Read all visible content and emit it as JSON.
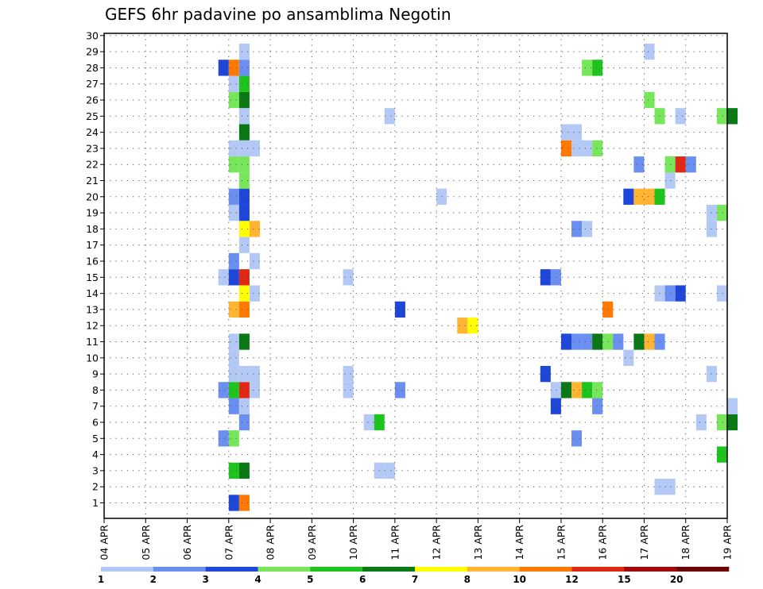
{
  "chart_data": {
    "type": "heatmap",
    "title": "GEFS 6hr padavine po ansamblima Negotin",
    "y_categories": [
      "1",
      "2",
      "3",
      "4",
      "5",
      "6",
      "7",
      "8",
      "9",
      "10",
      "11",
      "12",
      "13",
      "14",
      "15",
      "16",
      "17",
      "18",
      "19",
      "20",
      "21",
      "22",
      "23",
      "24",
      "25",
      "26",
      "27",
      "28",
      "29",
      "30"
    ],
    "x_tick_labels": [
      "04 APR",
      "05 APR",
      "06 APR",
      "07 APR",
      "08 APR",
      "09 APR",
      "10 APR",
      "11 APR",
      "12 APR",
      "13 APR",
      "14 APR",
      "15 APR",
      "16 APR",
      "17 APR",
      "18 APR",
      "19 APR"
    ],
    "x_step_hours": 6,
    "grid": "dotted",
    "legend": {
      "position": "bottom",
      "bins": [
        {
          "color": "#b4c8f5"
        },
        {
          "color": "#6b8ff0"
        },
        {
          "color": "#1e46d8"
        },
        {
          "color": "#78e65a"
        },
        {
          "color": "#1ec31e"
        },
        {
          "color": "#0a7814"
        },
        {
          "color": "#ffff00"
        },
        {
          "color": "#ffb432"
        },
        {
          "color": "#ff7800"
        },
        {
          "color": "#e12814"
        },
        {
          "color": "#a00a0a"
        },
        {
          "color": "#6e0000"
        }
      ],
      "tick_labels": [
        "1",
        "2",
        "3",
        "4",
        "5",
        "6",
        "7",
        "8",
        "10",
        "12",
        "15",
        "20"
      ]
    },
    "cells": [
      [
        1,
        12,
        3
      ],
      [
        1,
        13,
        9
      ],
      [
        2,
        53,
        1
      ],
      [
        2,
        54,
        1
      ],
      [
        3,
        12,
        5
      ],
      [
        3,
        13,
        6
      ],
      [
        3,
        26,
        1
      ],
      [
        3,
        27,
        1
      ],
      [
        4,
        59,
        5
      ],
      [
        5,
        11,
        2
      ],
      [
        5,
        12,
        4
      ],
      [
        5,
        45,
        2
      ],
      [
        6,
        13,
        2
      ],
      [
        6,
        25,
        1
      ],
      [
        6,
        26,
        5
      ],
      [
        6,
        57,
        1
      ],
      [
        6,
        59,
        4
      ],
      [
        6,
        60,
        6
      ],
      [
        7,
        12,
        2
      ],
      [
        7,
        13,
        1
      ],
      [
        7,
        43,
        3
      ],
      [
        7,
        47,
        2
      ],
      [
        7,
        60,
        1
      ],
      [
        8,
        11,
        2
      ],
      [
        8,
        12,
        5
      ],
      [
        8,
        13,
        10
      ],
      [
        8,
        14,
        1
      ],
      [
        8,
        23,
        1
      ],
      [
        8,
        28,
        2
      ],
      [
        8,
        43,
        1
      ],
      [
        8,
        44,
        6
      ],
      [
        8,
        45,
        8
      ],
      [
        8,
        46,
        5
      ],
      [
        8,
        47,
        4
      ],
      [
        9,
        12,
        1
      ],
      [
        9,
        13,
        1
      ],
      [
        9,
        14,
        1
      ],
      [
        9,
        23,
        1
      ],
      [
        9,
        42,
        3
      ],
      [
        9,
        58,
        1
      ],
      [
        10,
        12,
        1
      ],
      [
        10,
        50,
        1
      ],
      [
        11,
        12,
        1
      ],
      [
        11,
        13,
        6
      ],
      [
        11,
        44,
        3
      ],
      [
        11,
        45,
        2
      ],
      [
        11,
        46,
        2
      ],
      [
        11,
        47,
        6
      ],
      [
        11,
        48,
        4
      ],
      [
        11,
        49,
        2
      ],
      [
        11,
        51,
        6
      ],
      [
        11,
        52,
        8
      ],
      [
        11,
        53,
        2
      ],
      [
        12,
        34,
        8
      ],
      [
        12,
        35,
        7
      ],
      [
        13,
        12,
        8
      ],
      [
        13,
        13,
        9
      ],
      [
        13,
        48,
        9
      ],
      [
        13,
        28,
        3
      ],
      [
        14,
        13,
        7
      ],
      [
        14,
        14,
        1
      ],
      [
        14,
        53,
        1
      ],
      [
        14,
        54,
        2
      ],
      [
        14,
        55,
        3
      ],
      [
        14,
        59,
        1
      ],
      [
        15,
        11,
        1
      ],
      [
        15,
        12,
        3
      ],
      [
        15,
        13,
        10
      ],
      [
        15,
        23,
        1
      ],
      [
        15,
        42,
        3
      ],
      [
        15,
        43,
        2
      ],
      [
        16,
        12,
        2
      ],
      [
        16,
        14,
        1
      ],
      [
        17,
        13,
        1
      ],
      [
        18,
        13,
        7
      ],
      [
        18,
        14,
        8
      ],
      [
        18,
        45,
        2
      ],
      [
        18,
        46,
        1
      ],
      [
        18,
        58,
        1
      ],
      [
        19,
        12,
        1
      ],
      [
        19,
        13,
        3
      ],
      [
        19,
        58,
        1
      ],
      [
        19,
        59,
        4
      ],
      [
        20,
        12,
        2
      ],
      [
        20,
        13,
        3
      ],
      [
        20,
        32,
        1
      ],
      [
        20,
        50,
        3
      ],
      [
        20,
        51,
        8
      ],
      [
        20,
        52,
        8
      ],
      [
        20,
        53,
        5
      ],
      [
        21,
        13,
        4
      ],
      [
        21,
        54,
        1
      ],
      [
        22,
        12,
        4
      ],
      [
        22,
        13,
        4
      ],
      [
        22,
        51,
        2
      ],
      [
        22,
        54,
        4
      ],
      [
        22,
        55,
        10
      ],
      [
        22,
        56,
        2
      ],
      [
        23,
        12,
        1
      ],
      [
        23,
        13,
        1
      ],
      [
        23,
        14,
        1
      ],
      [
        23,
        44,
        9
      ],
      [
        23,
        45,
        1
      ],
      [
        23,
        46,
        1
      ],
      [
        23,
        47,
        4
      ],
      [
        24,
        13,
        6
      ],
      [
        24,
        44,
        1
      ],
      [
        24,
        45,
        1
      ],
      [
        25,
        13,
        1
      ],
      [
        25,
        27,
        1
      ],
      [
        25,
        53,
        4
      ],
      [
        25,
        55,
        1
      ],
      [
        25,
        59,
        4
      ],
      [
        25,
        60,
        6
      ],
      [
        26,
        12,
        4
      ],
      [
        26,
        13,
        6
      ],
      [
        26,
        52,
        4
      ],
      [
        27,
        12,
        1
      ],
      [
        27,
        13,
        5
      ],
      [
        28,
        11,
        3
      ],
      [
        28,
        12,
        9
      ],
      [
        28,
        13,
        2
      ],
      [
        28,
        46,
        4
      ],
      [
        28,
        47,
        5
      ],
      [
        29,
        13,
        1
      ],
      [
        29,
        52,
        1
      ]
    ]
  }
}
